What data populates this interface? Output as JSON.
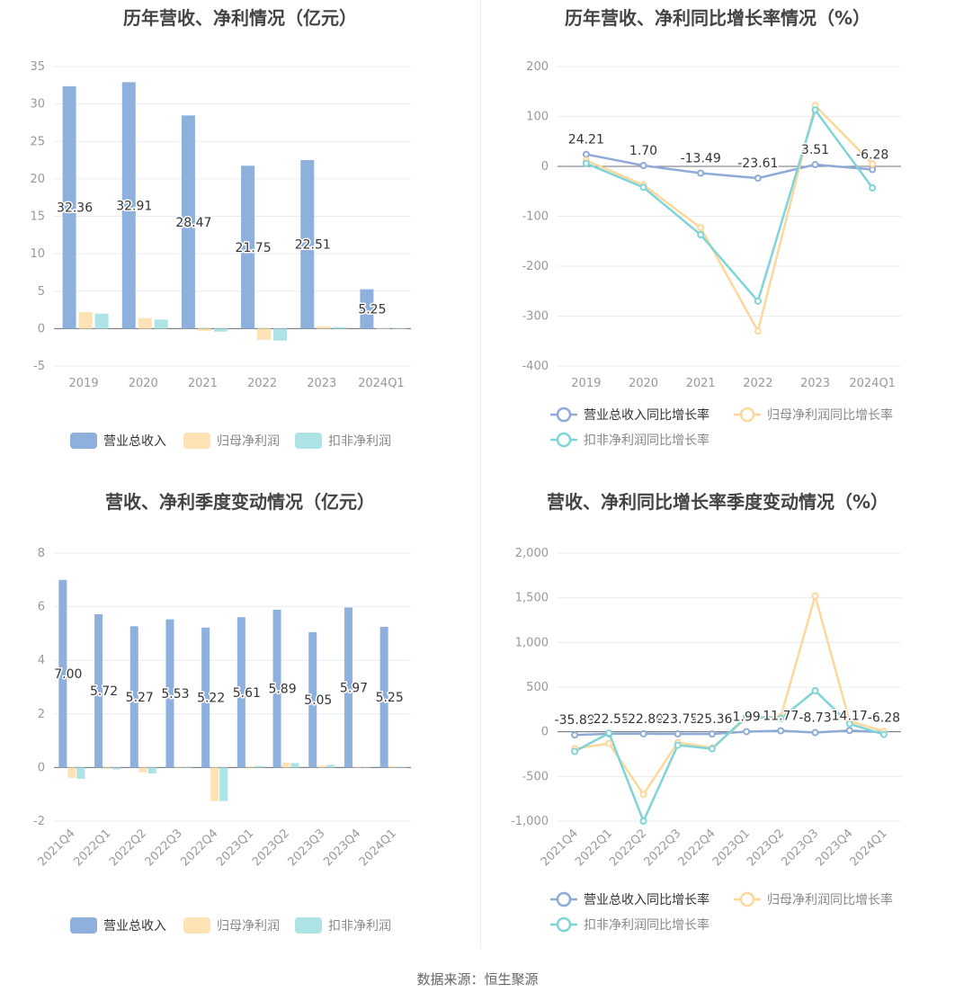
{
  "source": "数据来源：恒生聚源",
  "colors": {
    "revenue": "#8eb0dc",
    "net_profit": "#fde2b5",
    "deducted_profit": "#aee3e6",
    "revenue_line": "#8eaad6",
    "net_profit_line": "#fdd79b",
    "deducted_profit_line": "#7fd4d8",
    "grid": "#e8ecf3",
    "axis_text": "#999999"
  },
  "charts": [
    {
      "title": "历年营收、净利情况（亿元）",
      "chart_data": {
        "type": "bar",
        "title": "历年营收、净利情况（亿元）",
        "categories": [
          "2019",
          "2020",
          "2021",
          "2022",
          "2023",
          "2024Q1"
        ],
        "ylim": [
          -5,
          35
        ],
        "yticks": [
          "-5",
          "0",
          "5",
          "10",
          "15",
          "20",
          "25",
          "30",
          "35"
        ],
        "ytick_values": [
          -5,
          0,
          5,
          10,
          15,
          20,
          25,
          30,
          35
        ],
        "series": [
          {
            "name": "营业总收入",
            "values": [
              32.36,
              32.91,
              28.47,
              21.75,
              22.51,
              5.25
            ],
            "labels": [
              "32.36",
              "32.91",
              "28.47",
              "21.75",
              "22.51",
              "5.25"
            ]
          },
          {
            "name": "归母净利润",
            "values": [
              2.2,
              1.4,
              -0.3,
              -1.5,
              0.3,
              0.05
            ]
          },
          {
            "name": "扣非净利润",
            "values": [
              2.0,
              1.2,
              -0.4,
              -1.6,
              0.2,
              0.03
            ]
          }
        ],
        "legend": "bottom",
        "grid": true
      }
    },
    {
      "title": "历年营收、净利同比增长率情况（%）",
      "chart_data": {
        "type": "line",
        "title": "历年营收、净利同比增长率情况（%）",
        "categories": [
          "2019",
          "2020",
          "2021",
          "2022",
          "2023",
          "2024Q1"
        ],
        "ylim": [
          -400,
          200
        ],
        "yticks": [
          "-400",
          "-300",
          "-200",
          "-100",
          "0",
          "100",
          "200"
        ],
        "ytick_values": [
          -400,
          -300,
          -200,
          -100,
          0,
          100,
          200
        ],
        "series": [
          {
            "name": "营业总收入同比增长率",
            "values": [
              24.21,
              1.7,
              -13.49,
              -23.61,
              3.51,
              -6.28
            ],
            "labels": [
              "24.21",
              "1.70",
              "-13.49",
              "-23.61",
              "3.51",
              "-6.28"
            ]
          },
          {
            "name": "归母净利润同比增长率",
            "values": [
              12,
              -37,
              -123,
              -330,
              122,
              5
            ]
          },
          {
            "name": "扣非净利润同比增长率",
            "values": [
              6,
              -42,
              -137,
              -270,
              113,
              -43
            ]
          }
        ],
        "legend": "bottom",
        "grid": true
      }
    },
    {
      "title": "营收、净利季度变动情况（亿元）",
      "chart_data": {
        "type": "bar",
        "title": "营收、净利季度变动情况（亿元）",
        "categories": [
          "2021Q4",
          "2022Q1",
          "2022Q2",
          "2022Q3",
          "2022Q4",
          "2023Q1",
          "2023Q2",
          "2023Q3",
          "2023Q4",
          "2024Q1"
        ],
        "ylim": [
          -2,
          8
        ],
        "yticks": [
          "-2",
          "0",
          "2",
          "4",
          "6",
          "8"
        ],
        "ytick_values": [
          -2,
          0,
          2,
          4,
          6,
          8
        ],
        "series": [
          {
            "name": "营业总收入",
            "values": [
              7.0,
              5.72,
              5.27,
              5.53,
              5.22,
              5.61,
              5.89,
              5.05,
              5.97,
              5.25
            ],
            "labels": [
              "7.00",
              "5.72",
              "5.27",
              "5.53",
              "5.22",
              "5.61",
              "5.89",
              "5.05",
              "5.97",
              "5.25"
            ]
          },
          {
            "name": "归母净利润",
            "values": [
              -0.38,
              -0.05,
              -0.18,
              0.02,
              -1.25,
              0.05,
              0.18,
              0.08,
              0.03,
              0.05
            ]
          },
          {
            "name": "扣非净利润",
            "values": [
              -0.42,
              -0.07,
              -0.22,
              0.0,
              -1.25,
              0.06,
              0.17,
              0.1,
              0.02,
              0.03
            ]
          }
        ],
        "legend": "bottom",
        "grid": true
      }
    },
    {
      "title": "营收、净利同比增长率季度变动情况（%）",
      "chart_data": {
        "type": "line",
        "title": "营收、净利同比增长率季度变动情况（%）",
        "categories": [
          "2021Q4",
          "2022Q1",
          "2022Q2",
          "2022Q3",
          "2022Q4",
          "2023Q1",
          "2023Q2",
          "2023Q3",
          "2023Q4",
          "2024Q1"
        ],
        "ylim": [
          -1000,
          2000
        ],
        "yticks": [
          "-1,000",
          "-500",
          "0",
          "500",
          "1,000",
          "1,500",
          "2,000"
        ],
        "ytick_values": [
          -1000,
          -500,
          0,
          500,
          1000,
          1500,
          2000
        ],
        "series": [
          {
            "name": "营业总收入同比增长率",
            "values": [
              -35.89,
              -22.55,
              -22.8,
              -23.75,
              -25.36,
              1.99,
              11.77,
              -8.73,
              14.17,
              -6.28
            ],
            "labels": [
              "-35.89",
              "-22.55",
              "-22.80",
              "-23.75",
              "-25.36",
              "1.99",
              "11.77",
              "-8.73",
              "14.17",
              "-6.28"
            ]
          },
          {
            "name": "归母净利润同比增长率",
            "values": [
              -190,
              -130,
              -700,
              -120,
              -180,
              150,
              170,
              1520,
              120,
              5
            ]
          },
          {
            "name": "扣非净利润同比增长率",
            "values": [
              -220,
              -15,
              -1000,
              -150,
              -190,
              170,
              150,
              460,
              90,
              -30
            ]
          }
        ],
        "legend": "bottom",
        "grid": true
      }
    }
  ]
}
